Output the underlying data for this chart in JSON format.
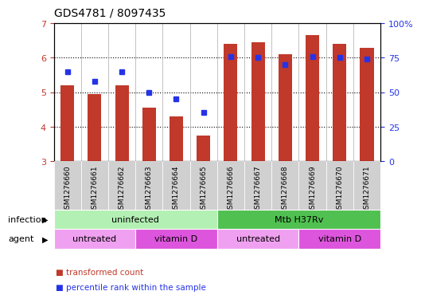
{
  "title": "GDS4781 / 8097435",
  "samples": [
    "GSM1276660",
    "GSM1276661",
    "GSM1276662",
    "GSM1276663",
    "GSM1276664",
    "GSM1276665",
    "GSM1276666",
    "GSM1276667",
    "GSM1276668",
    "GSM1276669",
    "GSM1276670",
    "GSM1276671"
  ],
  "bar_values": [
    5.2,
    4.95,
    5.2,
    4.55,
    4.3,
    3.75,
    6.4,
    6.45,
    6.1,
    6.65,
    6.4,
    6.28
  ],
  "percentile_values_pct": [
    65,
    58,
    65,
    50,
    45,
    35,
    76,
    75,
    70,
    76,
    75,
    74
  ],
  "bar_bottom": 3.0,
  "ylim_left": [
    3,
    7
  ],
  "ylim_right": [
    0,
    100
  ],
  "yticks_left": [
    3,
    4,
    5,
    6,
    7
  ],
  "yticks_right": [
    0,
    25,
    50,
    75,
    100
  ],
  "ytick_labels_right": [
    "0",
    "25",
    "50",
    "75",
    "100%"
  ],
  "bar_color": "#c0392b",
  "percentile_color": "#2533e8",
  "infection_groups": [
    {
      "label": "uninfected",
      "start": 0,
      "end": 6,
      "color": "#b3f0b3"
    },
    {
      "label": "Mtb H37Rv",
      "start": 6,
      "end": 12,
      "color": "#50c050"
    }
  ],
  "agent_groups": [
    {
      "label": "untreated",
      "start": 0,
      "end": 3,
      "color": "#f0a0f0"
    },
    {
      "label": "vitamin D",
      "start": 3,
      "end": 6,
      "color": "#dd55dd"
    },
    {
      "label": "untreated",
      "start": 6,
      "end": 9,
      "color": "#f0a0f0"
    },
    {
      "label": "vitamin D",
      "start": 9,
      "end": 12,
      "color": "#dd55dd"
    }
  ],
  "legend_items": [
    {
      "label": "transformed count",
      "color": "#c0392b"
    },
    {
      "label": "percentile rank within the sample",
      "color": "#2533e8"
    }
  ],
  "infection_label": "infection",
  "agent_label": "agent",
  "sample_bg_color": "#d0d0d0",
  "bar_width": 0.5
}
